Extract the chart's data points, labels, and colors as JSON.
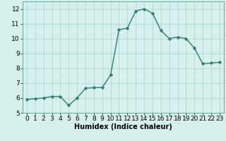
{
  "x": [
    0,
    1,
    2,
    3,
    4,
    5,
    6,
    7,
    8,
    9,
    10,
    11,
    12,
    13,
    14,
    15,
    16,
    17,
    18,
    19,
    20,
    21,
    22,
    23
  ],
  "y": [
    5.9,
    5.95,
    6.0,
    6.1,
    6.1,
    5.5,
    6.0,
    6.65,
    6.7,
    6.7,
    7.55,
    10.6,
    10.7,
    11.85,
    12.0,
    11.7,
    10.55,
    10.0,
    10.1,
    10.0,
    9.35,
    8.3,
    8.35,
    8.4
  ],
  "line_color": "#2e7d6e",
  "marker": "D",
  "marker_size": 1.8,
  "bg_color": "#d6f0ee",
  "grid_color": "#b0d8d4",
  "xlabel": "Humidex (Indice chaleur)",
  "xlim": [
    -0.5,
    23.5
  ],
  "ylim": [
    5.0,
    12.5
  ],
  "yticks": [
    5,
    6,
    7,
    8,
    9,
    10,
    11,
    12
  ],
  "xticks": [
    0,
    1,
    2,
    3,
    4,
    5,
    6,
    7,
    8,
    9,
    10,
    11,
    12,
    13,
    14,
    15,
    16,
    17,
    18,
    19,
    20,
    21,
    22,
    23
  ],
  "xlabel_fontsize": 7,
  "tick_fontsize": 6.5,
  "line_width": 1.0
}
